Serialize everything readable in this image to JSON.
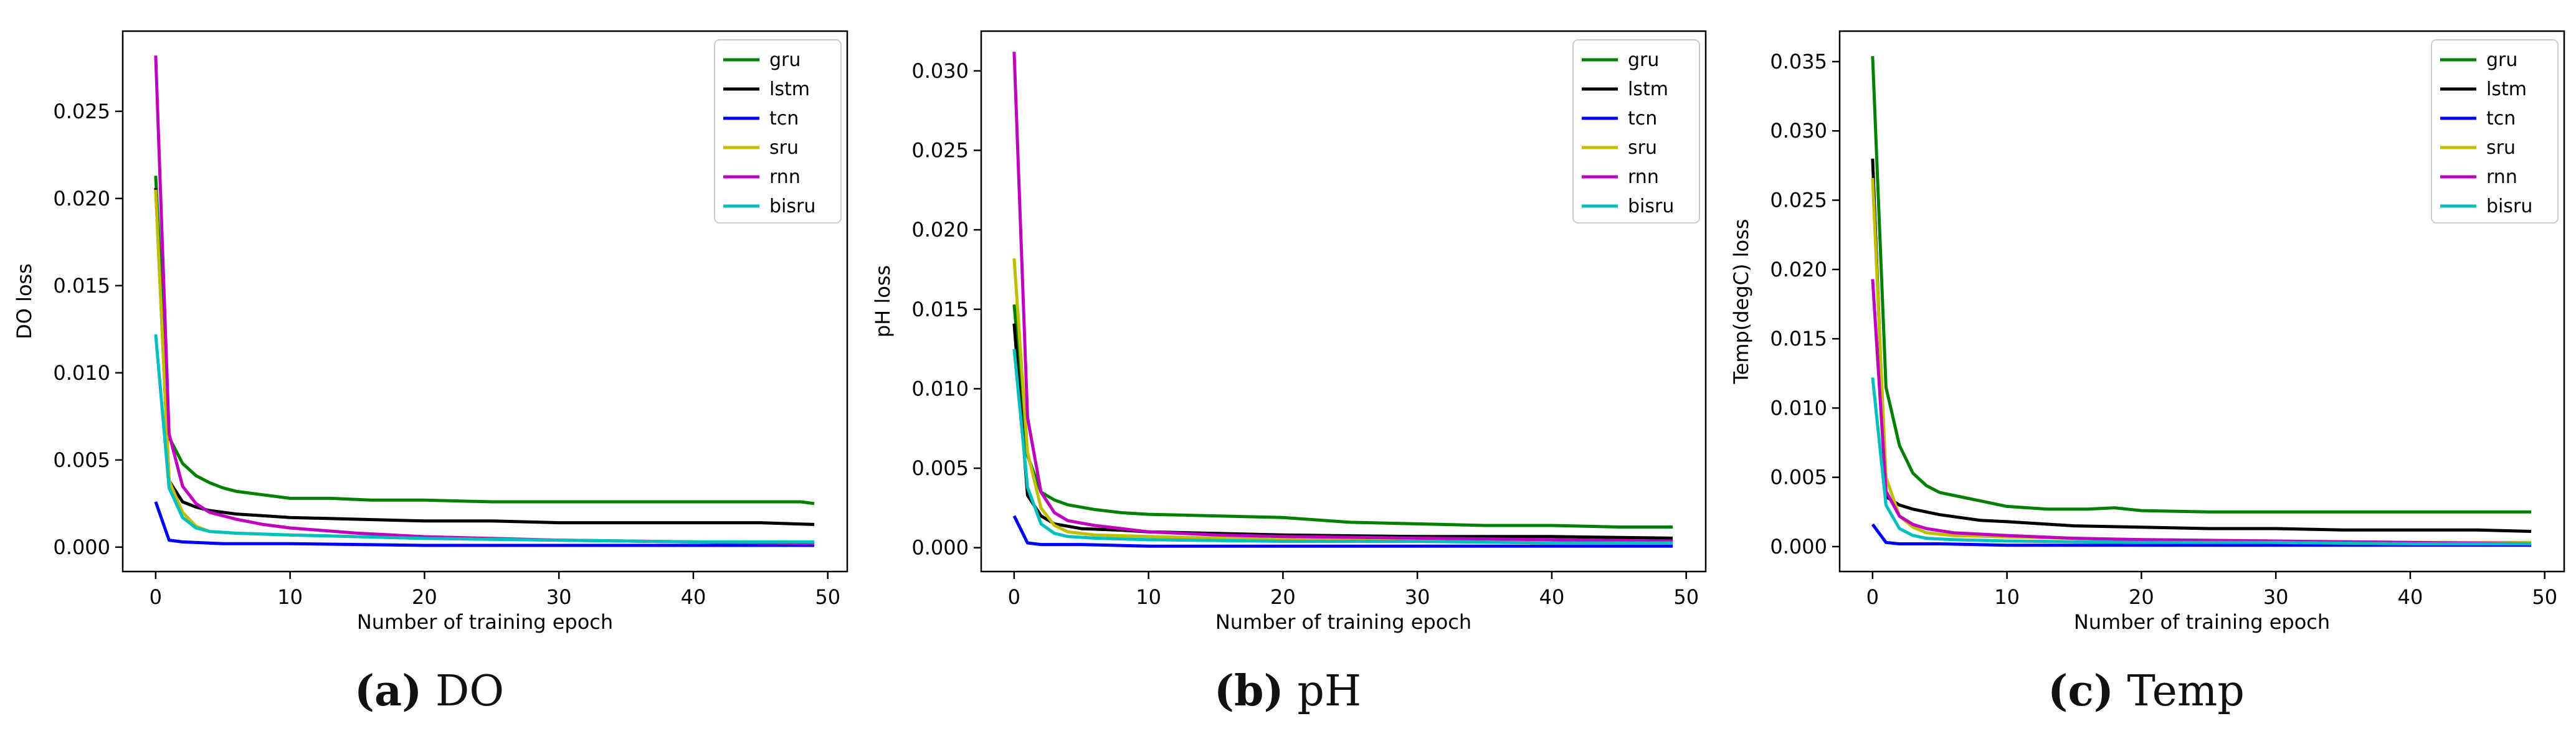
{
  "colors": {
    "gru": "#008000",
    "lstm": "#000000",
    "tcn": "#0000ff",
    "sru": "#bfbf00",
    "rnn": "#bf00bf",
    "bisru": "#00bfbf"
  },
  "chart_data": [
    {
      "type": "line",
      "caption_label": "(a)",
      "caption_text": "DO",
      "title": "",
      "xlabel": "Number of training epoch",
      "ylabel": "DO loss",
      "xlim": [
        -2.45,
        51.45
      ],
      "ylim": [
        -0.0014,
        0.0296
      ],
      "xticks": [
        0,
        10,
        20,
        30,
        40,
        50
      ],
      "xtick_labels": [
        "0",
        "10",
        "20",
        "30",
        "40",
        "50"
      ],
      "yticks": [
        0.0,
        0.005,
        0.01,
        0.015,
        0.02,
        0.025
      ],
      "ytick_labels": [
        "0.000",
        "0.005",
        "0.010",
        "0.015",
        "0.020",
        "0.025"
      ],
      "legend": "top-right",
      "series": [
        {
          "name": "gru",
          "points": [
            [
              0,
              0.0213
            ],
            [
              1,
              0.0063
            ],
            [
              2,
              0.0048
            ],
            [
              3,
              0.0041
            ],
            [
              4,
              0.0037
            ],
            [
              5,
              0.0034
            ],
            [
              6,
              0.0032
            ],
            [
              8,
              0.003
            ],
            [
              10,
              0.0028
            ],
            [
              13,
              0.0028
            ],
            [
              16,
              0.0027
            ],
            [
              20,
              0.0027
            ],
            [
              25,
              0.0026
            ],
            [
              30,
              0.0026
            ],
            [
              35,
              0.0026
            ],
            [
              40,
              0.0026
            ],
            [
              45,
              0.0026
            ],
            [
              48,
              0.0026
            ],
            [
              49,
              0.0025
            ]
          ]
        },
        {
          "name": "lstm",
          "points": [
            [
              0,
              0.0206
            ],
            [
              1,
              0.0038
            ],
            [
              2,
              0.0026
            ],
            [
              3,
              0.0023
            ],
            [
              4,
              0.0021
            ],
            [
              6,
              0.0019
            ],
            [
              8,
              0.0018
            ],
            [
              10,
              0.0017
            ],
            [
              15,
              0.0016
            ],
            [
              20,
              0.0015
            ],
            [
              25,
              0.0015
            ],
            [
              30,
              0.0014
            ],
            [
              35,
              0.0014
            ],
            [
              40,
              0.0014
            ],
            [
              45,
              0.0014
            ],
            [
              49,
              0.0013
            ]
          ]
        },
        {
          "name": "tcn",
          "points": [
            [
              0,
              0.0026
            ],
            [
              1,
              0.0004
            ],
            [
              2,
              0.0003
            ],
            [
              5,
              0.0002
            ],
            [
              10,
              0.0002
            ],
            [
              20,
              0.0001
            ],
            [
              30,
              0.0001
            ],
            [
              40,
              0.0001
            ],
            [
              49,
              0.0001
            ]
          ]
        },
        {
          "name": "sru",
          "points": [
            [
              0,
              0.0205
            ],
            [
              1,
              0.0038
            ],
            [
              2,
              0.002
            ],
            [
              3,
              0.0012
            ],
            [
              4,
              0.0009
            ],
            [
              6,
              0.0008
            ],
            [
              10,
              0.0007
            ],
            [
              15,
              0.0006
            ],
            [
              20,
              0.0005
            ],
            [
              30,
              0.0004
            ],
            [
              40,
              0.0003
            ],
            [
              49,
              0.0003
            ]
          ]
        },
        {
          "name": "rnn",
          "points": [
            [
              0,
              0.0282
            ],
            [
              1,
              0.0065
            ],
            [
              2,
              0.0035
            ],
            [
              3,
              0.0025
            ],
            [
              4,
              0.002
            ],
            [
              6,
              0.0016
            ],
            [
              8,
              0.0013
            ],
            [
              10,
              0.0011
            ],
            [
              15,
              0.0008
            ],
            [
              20,
              0.0006
            ],
            [
              30,
              0.0004
            ],
            [
              40,
              0.0003
            ],
            [
              49,
              0.0002
            ]
          ]
        },
        {
          "name": "bisru",
          "points": [
            [
              0,
              0.0122
            ],
            [
              1,
              0.0034
            ],
            [
              2,
              0.0017
            ],
            [
              3,
              0.0011
            ],
            [
              4,
              0.0009
            ],
            [
              6,
              0.0008
            ],
            [
              10,
              0.0007
            ],
            [
              15,
              0.0006
            ],
            [
              20,
              0.0005
            ],
            [
              30,
              0.0004
            ],
            [
              40,
              0.0003
            ],
            [
              49,
              0.0003
            ]
          ]
        }
      ]
    },
    {
      "type": "line",
      "caption_label": "(b)",
      "caption_text": "pH",
      "title": "",
      "xlabel": "Number of training epoch",
      "ylabel": "pH loss",
      "xlim": [
        -2.45,
        51.45
      ],
      "ylim": [
        -0.0015,
        0.0325
      ],
      "xticks": [
        0,
        10,
        20,
        30,
        40,
        50
      ],
      "xtick_labels": [
        "0",
        "10",
        "20",
        "30",
        "40",
        "50"
      ],
      "yticks": [
        0.0,
        0.005,
        0.01,
        0.015,
        0.02,
        0.025,
        0.03
      ],
      "ytick_labels": [
        "0.000",
        "0.005",
        "0.010",
        "0.015",
        "0.020",
        "0.025",
        "0.030"
      ],
      "legend": "top-right",
      "series": [
        {
          "name": "gru",
          "points": [
            [
              0,
              0.0153
            ],
            [
              1,
              0.0058
            ],
            [
              2,
              0.0035
            ],
            [
              3,
              0.003
            ],
            [
              4,
              0.0027
            ],
            [
              6,
              0.0024
            ],
            [
              8,
              0.0022
            ],
            [
              10,
              0.0021
            ],
            [
              15,
              0.002
            ],
            [
              20,
              0.0019
            ],
            [
              25,
              0.0016
            ],
            [
              30,
              0.0015
            ],
            [
              35,
              0.0014
            ],
            [
              40,
              0.0014
            ],
            [
              45,
              0.0013
            ],
            [
              49,
              0.0013
            ]
          ]
        },
        {
          "name": "lstm",
          "points": [
            [
              0,
              0.0141
            ],
            [
              1,
              0.0033
            ],
            [
              2,
              0.002
            ],
            [
              3,
              0.0015
            ],
            [
              5,
              0.0012
            ],
            [
              8,
              0.0011
            ],
            [
              10,
              0.001
            ],
            [
              15,
              0.0009
            ],
            [
              20,
              0.0008
            ],
            [
              30,
              0.0007
            ],
            [
              40,
              0.0007
            ],
            [
              49,
              0.0006
            ]
          ]
        },
        {
          "name": "tcn",
          "points": [
            [
              0,
              0.002
            ],
            [
              1,
              0.0003
            ],
            [
              2,
              0.0002
            ],
            [
              5,
              0.0002
            ],
            [
              10,
              0.0001
            ],
            [
              20,
              0.0001
            ],
            [
              30,
              0.0001
            ],
            [
              40,
              0.0001
            ],
            [
              49,
              0.0001
            ]
          ]
        },
        {
          "name": "sru",
          "points": [
            [
              0,
              0.0182
            ],
            [
              1,
              0.006
            ],
            [
              2,
              0.0025
            ],
            [
              3,
              0.0014
            ],
            [
              4,
              0.001
            ],
            [
              6,
              0.0008
            ],
            [
              10,
              0.0007
            ],
            [
              15,
              0.0006
            ],
            [
              20,
              0.0005
            ],
            [
              30,
              0.0004
            ],
            [
              40,
              0.0003
            ],
            [
              49,
              0.0003
            ]
          ]
        },
        {
          "name": "rnn",
          "points": [
            [
              0,
              0.0312
            ],
            [
              1,
              0.0082
            ],
            [
              2,
              0.0035
            ],
            [
              3,
              0.0022
            ],
            [
              4,
              0.0017
            ],
            [
              6,
              0.0014
            ],
            [
              8,
              0.0012
            ],
            [
              10,
              0.001
            ],
            [
              15,
              0.0008
            ],
            [
              20,
              0.0007
            ],
            [
              30,
              0.0006
            ],
            [
              40,
              0.0005
            ],
            [
              49,
              0.0004
            ]
          ]
        },
        {
          "name": "bisru",
          "points": [
            [
              0,
              0.0125
            ],
            [
              1,
              0.0038
            ],
            [
              2,
              0.0015
            ],
            [
              3,
              0.0009
            ],
            [
              4,
              0.0007
            ],
            [
              6,
              0.0006
            ],
            [
              10,
              0.0005
            ],
            [
              20,
              0.0004
            ],
            [
              30,
              0.0004
            ],
            [
              40,
              0.0003
            ],
            [
              49,
              0.0003
            ]
          ]
        }
      ]
    },
    {
      "type": "line",
      "caption_label": "(c)",
      "caption_text": "Temp",
      "title": "",
      "xlabel": "Number of training epoch",
      "ylabel": "Temp(degC) loss",
      "xlim": [
        -2.45,
        51.45
      ],
      "ylim": [
        -0.0018,
        0.0372
      ],
      "xticks": [
        0,
        10,
        20,
        30,
        40,
        50
      ],
      "xtick_labels": [
        "0",
        "10",
        "20",
        "30",
        "40",
        "50"
      ],
      "yticks": [
        0.0,
        0.005,
        0.01,
        0.015,
        0.02,
        0.025,
        0.03,
        0.035
      ],
      "ytick_labels": [
        "0.000",
        "0.005",
        "0.010",
        "0.015",
        "0.020",
        "0.025",
        "0.030",
        "0.035"
      ],
      "legend": "top-right",
      "series": [
        {
          "name": "gru",
          "points": [
            [
              0,
              0.0354
            ],
            [
              1,
              0.0115
            ],
            [
              2,
              0.0073
            ],
            [
              3,
              0.0053
            ],
            [
              4,
              0.0044
            ],
            [
              5,
              0.0039
            ],
            [
              7,
              0.0035
            ],
            [
              9,
              0.0031
            ],
            [
              10,
              0.0029
            ],
            [
              13,
              0.0027
            ],
            [
              16,
              0.0027
            ],
            [
              18,
              0.0028
            ],
            [
              20,
              0.0026
            ],
            [
              25,
              0.0025
            ],
            [
              30,
              0.0025
            ],
            [
              35,
              0.0025
            ],
            [
              40,
              0.0025
            ],
            [
              45,
              0.0025
            ],
            [
              49,
              0.0025
            ]
          ]
        },
        {
          "name": "lstm",
          "points": [
            [
              0,
              0.028
            ],
            [
              1,
              0.0036
            ],
            [
              2,
              0.003
            ],
            [
              3,
              0.0027
            ],
            [
              5,
              0.0023
            ],
            [
              8,
              0.0019
            ],
            [
              10,
              0.0018
            ],
            [
              15,
              0.0015
            ],
            [
              20,
              0.0014
            ],
            [
              25,
              0.0013
            ],
            [
              30,
              0.0013
            ],
            [
              35,
              0.0012
            ],
            [
              40,
              0.0012
            ],
            [
              45,
              0.0012
            ],
            [
              49,
              0.0011
            ]
          ]
        },
        {
          "name": "tcn",
          "points": [
            [
              0,
              0.0016
            ],
            [
              1,
              0.0003
            ],
            [
              2,
              0.0002
            ],
            [
              5,
              0.0002
            ],
            [
              10,
              0.0001
            ],
            [
              20,
              0.0001
            ],
            [
              30,
              0.0001
            ],
            [
              40,
              0.0001
            ],
            [
              49,
              0.0001
            ]
          ]
        },
        {
          "name": "sru",
          "points": [
            [
              0,
              0.0266
            ],
            [
              1,
              0.005
            ],
            [
              2,
              0.0022
            ],
            [
              3,
              0.0014
            ],
            [
              4,
              0.001
            ],
            [
              6,
              0.0008
            ],
            [
              10,
              0.0007
            ],
            [
              15,
              0.0006
            ],
            [
              20,
              0.0005
            ],
            [
              30,
              0.0004
            ],
            [
              40,
              0.0003
            ],
            [
              49,
              0.0003
            ]
          ]
        },
        {
          "name": "rnn",
          "points": [
            [
              0,
              0.0193
            ],
            [
              1,
              0.004
            ],
            [
              2,
              0.0022
            ],
            [
              3,
              0.0016
            ],
            [
              4,
              0.0013
            ],
            [
              6,
              0.001
            ],
            [
              10,
              0.0008
            ],
            [
              15,
              0.0006
            ],
            [
              20,
              0.0005
            ],
            [
              30,
              0.0004
            ],
            [
              40,
              0.0003
            ],
            [
              49,
              0.0002
            ]
          ]
        },
        {
          "name": "bisru",
          "points": [
            [
              0,
              0.0122
            ],
            [
              1,
              0.003
            ],
            [
              2,
              0.0013
            ],
            [
              3,
              0.0008
            ],
            [
              4,
              0.0006
            ],
            [
              6,
              0.0005
            ],
            [
              10,
              0.0004
            ],
            [
              20,
              0.0003
            ],
            [
              30,
              0.0003
            ],
            [
              40,
              0.0002
            ],
            [
              49,
              0.0002
            ]
          ]
        }
      ]
    }
  ]
}
